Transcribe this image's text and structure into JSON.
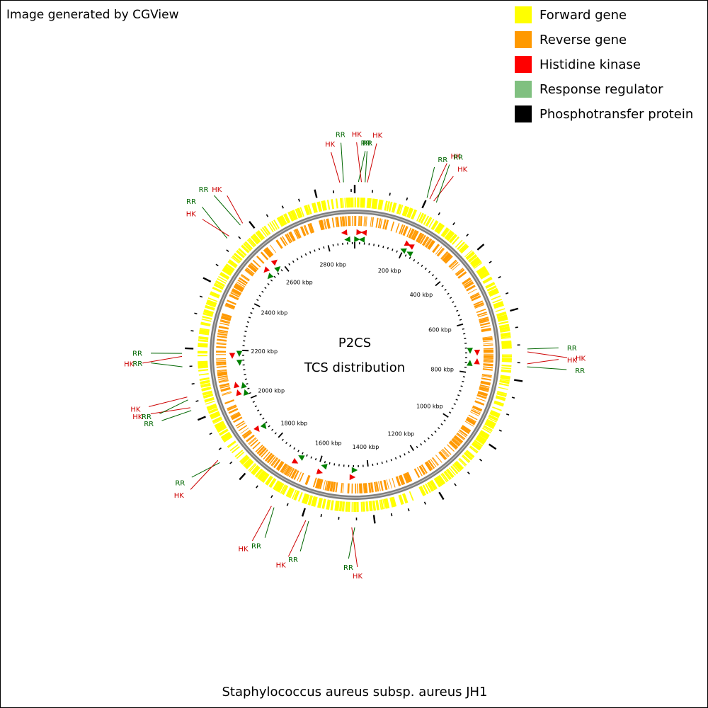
{
  "header": {
    "generator": "Image generated by CGView"
  },
  "legend": [
    {
      "label": "Forward gene",
      "color": "#ffff00"
    },
    {
      "label": "Reverse gene",
      "color": "#ff9900"
    },
    {
      "label": "Histidine kinase",
      "color": "#ff0000"
    },
    {
      "label": "Response regulator",
      "color": "#80c080"
    },
    {
      "label": "Phosphotransfer protein",
      "color": "#000000"
    }
  ],
  "center": {
    "title": "P2CS",
    "subtitle": "TCS distribution"
  },
  "footer": {
    "genome": "Staphylococcus aureus subsp. aureus JH1"
  },
  "chart_data": {
    "type": "circular-genome-map",
    "genome_length_kbp": 2910,
    "tick_labels": [
      {
        "kbp": 200,
        "label": "200 kbp"
      },
      {
        "kbp": 400,
        "label": "400 kbp"
      },
      {
        "kbp": 600,
        "label": "600 kbp"
      },
      {
        "kbp": 800,
        "label": "800 kbp"
      },
      {
        "kbp": 1000,
        "label": "1000 kbp"
      },
      {
        "kbp": 1200,
        "label": "1200 kbp"
      },
      {
        "kbp": 1400,
        "label": "1400 kbp"
      },
      {
        "kbp": 1600,
        "label": "1600 kbp"
      },
      {
        "kbp": 1800,
        "label": "1800 kbp"
      },
      {
        "kbp": 2000,
        "label": "2000 kbp"
      },
      {
        "kbp": 2200,
        "label": "2200 kbp"
      },
      {
        "kbp": 2400,
        "label": "2400 kbp"
      },
      {
        "kbp": 2600,
        "label": "2600 kbp"
      },
      {
        "kbp": 2800,
        "label": "2800 kbp"
      }
    ],
    "tcs_features": [
      {
        "kbp": 2870,
        "type": "HK",
        "strand": "reverse"
      },
      {
        "kbp": 2880,
        "type": "RR",
        "strand": "reverse"
      },
      {
        "kbp": 10,
        "type": "RR",
        "strand": "forward"
      },
      {
        "kbp": 18,
        "type": "HK",
        "strand": "forward"
      },
      {
        "kbp": 28,
        "type": "RR",
        "strand": "reverse"
      },
      {
        "kbp": 34,
        "type": "HK",
        "strand": "reverse"
      },
      {
        "kbp": 200,
        "type": "RR",
        "strand": "reverse"
      },
      {
        "kbp": 208,
        "type": "HK",
        "strand": "forward"
      },
      {
        "kbp": 220,
        "type": "HK",
        "strand": "reverse"
      },
      {
        "kbp": 228,
        "type": "RR",
        "strand": "reverse"
      },
      {
        "kbp": 712,
        "type": "RR",
        "strand": "forward"
      },
      {
        "kbp": 720,
        "type": "HK",
        "strand": "forward"
      },
      {
        "kbp": 752,
        "type": "HK",
        "strand": "reverse"
      },
      {
        "kbp": 760,
        "type": "RR",
        "strand": "reverse"
      },
      {
        "kbp": 1455,
        "type": "RR",
        "strand": "reverse"
      },
      {
        "kbp": 1463,
        "type": "HK",
        "strand": "reverse"
      },
      {
        "kbp": 1580,
        "type": "RR",
        "strand": "forward"
      },
      {
        "kbp": 1588,
        "type": "HK",
        "strand": "reverse"
      },
      {
        "kbp": 1680,
        "type": "RR",
        "strand": "forward"
      },
      {
        "kbp": 1688,
        "type": "HK",
        "strand": "reverse"
      },
      {
        "kbp": 1870,
        "type": "RR",
        "strand": "reverse"
      },
      {
        "kbp": 1878,
        "type": "HK",
        "strand": "reverse"
      },
      {
        "kbp": 2030,
        "type": "RR",
        "strand": "forward"
      },
      {
        "kbp": 2038,
        "type": "HK",
        "strand": "forward"
      },
      {
        "kbp": 2060,
        "type": "RR",
        "strand": "forward"
      },
      {
        "kbp": 2068,
        "type": "HK",
        "strand": "forward"
      },
      {
        "kbp": 2150,
        "type": "RR",
        "strand": "reverse"
      },
      {
        "kbp": 2178,
        "type": "HK",
        "strand": "reverse"
      },
      {
        "kbp": 2186,
        "type": "RR",
        "strand": "reverse"
      },
      {
        "kbp": 2525,
        "type": "RR",
        "strand": "reverse"
      },
      {
        "kbp": 2533,
        "type": "HK",
        "strand": "reverse"
      },
      {
        "kbp": 2575,
        "type": "RR",
        "strand": "forward"
      },
      {
        "kbp": 2583,
        "type": "HK",
        "strand": "forward"
      }
    ],
    "callout_colors": {
      "HK": "#cc0000",
      "RR": "#006600"
    },
    "ring_colors": {
      "forward": "#ffff00",
      "reverse": "#ff9900",
      "backbone": "#808080"
    }
  }
}
